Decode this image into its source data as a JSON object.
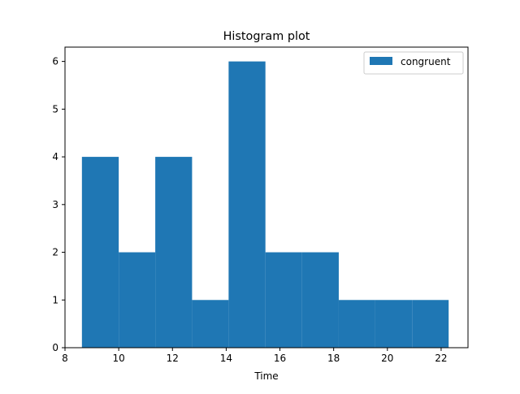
{
  "chart_data": {
    "type": "bar",
    "title": "Histogram plot",
    "xlabel": "Time",
    "ylabel": "",
    "xlim": [
      8.0,
      23.0
    ],
    "ylim": [
      0,
      6.3
    ],
    "xticks": [
      "8",
      "10",
      "12",
      "14",
      "16",
      "18",
      "20",
      "22"
    ],
    "yticks": [
      "0",
      "1",
      "2",
      "3",
      "4",
      "5",
      "6"
    ],
    "bin_edges": [
      8.63,
      10.0,
      11.36,
      12.73,
      14.09,
      15.46,
      16.82,
      18.19,
      19.55,
      20.92,
      22.28
    ],
    "series": [
      {
        "name": "congruent",
        "values": [
          4,
          2,
          4,
          1,
          6,
          2,
          2,
          1,
          1,
          1
        ],
        "color": "#1f77b4"
      }
    ],
    "legend": {
      "position": "top-right"
    },
    "grid": false
  }
}
